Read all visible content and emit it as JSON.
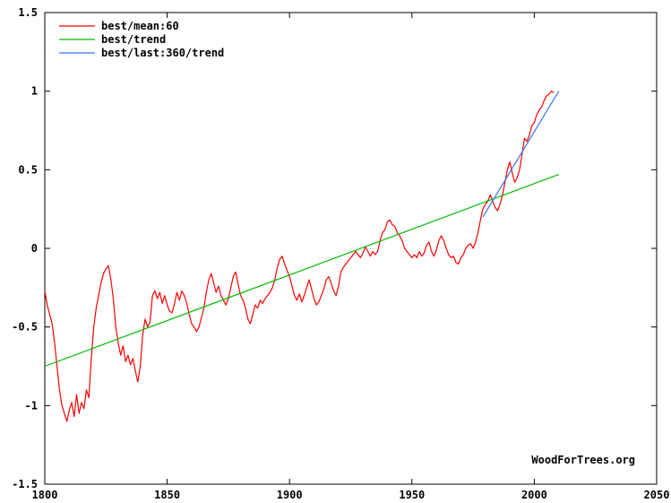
{
  "chart_data": {
    "type": "line",
    "xlim": [
      1800,
      2050
    ],
    "ylim": [
      -1.5,
      1.5
    ],
    "x_ticks": [
      1800,
      1850,
      1900,
      1950,
      2000,
      2050
    ],
    "y_ticks": [
      -1.5,
      -1,
      -0.5,
      0,
      0.5,
      1,
      1.5
    ],
    "x_tick_labels": [
      "1800",
      "1850",
      "1900",
      "1950",
      "2000",
      "2050"
    ],
    "y_tick_labels": [
      "-1.5",
      "-1",
      "-0.5",
      "0",
      "0.5",
      "1",
      "1.5"
    ],
    "grid": false,
    "legend_position": "top-left",
    "credit": "WoodForTrees.org",
    "series": [
      {
        "name": "best/mean:60",
        "color": "#ff0000",
        "points": [
          [
            1800.0,
            -0.27
          ],
          [
            1801.0,
            -0.36
          ],
          [
            1802.0,
            -0.42
          ],
          [
            1803.0,
            -0.48
          ],
          [
            1804.0,
            -0.6
          ],
          [
            1805.0,
            -0.75
          ],
          [
            1806.0,
            -0.9
          ],
          [
            1807.0,
            -1.0
          ],
          [
            1808.0,
            -1.05
          ],
          [
            1809.0,
            -1.1
          ],
          [
            1810.0,
            -1.03
          ],
          [
            1811.0,
            -0.98
          ],
          [
            1812.0,
            -1.07
          ],
          [
            1813.0,
            -0.93
          ],
          [
            1814.0,
            -1.05
          ],
          [
            1815.0,
            -0.98
          ],
          [
            1816.0,
            -1.02
          ],
          [
            1817.0,
            -0.9
          ],
          [
            1818.0,
            -0.95
          ],
          [
            1819.0,
            -0.7
          ],
          [
            1820.0,
            -0.5
          ],
          [
            1821.0,
            -0.38
          ],
          [
            1822.0,
            -0.3
          ],
          [
            1823.0,
            -0.22
          ],
          [
            1824.0,
            -0.16
          ],
          [
            1825.0,
            -0.13
          ],
          [
            1826.0,
            -0.11
          ],
          [
            1827.0,
            -0.2
          ],
          [
            1828.0,
            -0.32
          ],
          [
            1829.0,
            -0.5
          ],
          [
            1830.0,
            -0.6
          ],
          [
            1831.0,
            -0.68
          ],
          [
            1832.0,
            -0.62
          ],
          [
            1833.0,
            -0.72
          ],
          [
            1834.0,
            -0.68
          ],
          [
            1835.0,
            -0.74
          ],
          [
            1836.0,
            -0.7
          ],
          [
            1837.0,
            -0.78
          ],
          [
            1838.0,
            -0.85
          ],
          [
            1839.0,
            -0.75
          ],
          [
            1840.0,
            -0.55
          ],
          [
            1841.0,
            -0.45
          ],
          [
            1842.0,
            -0.5
          ],
          [
            1843.0,
            -0.47
          ],
          [
            1844.0,
            -0.3
          ],
          [
            1845.0,
            -0.27
          ],
          [
            1846.0,
            -0.32
          ],
          [
            1847.0,
            -0.28
          ],
          [
            1848.0,
            -0.35
          ],
          [
            1849.0,
            -0.3
          ],
          [
            1850.0,
            -0.36
          ],
          [
            1851.0,
            -0.4
          ],
          [
            1852.0,
            -0.41
          ],
          [
            1853.0,
            -0.35
          ],
          [
            1854.0,
            -0.28
          ],
          [
            1855.0,
            -0.33
          ],
          [
            1856.0,
            -0.27
          ],
          [
            1857.0,
            -0.3
          ],
          [
            1858.0,
            -0.35
          ],
          [
            1859.0,
            -0.42
          ],
          [
            1860.0,
            -0.48
          ],
          [
            1861.0,
            -0.5
          ],
          [
            1862.0,
            -0.53
          ],
          [
            1863.0,
            -0.5
          ],
          [
            1864.0,
            -0.44
          ],
          [
            1865.0,
            -0.38
          ],
          [
            1866.0,
            -0.28
          ],
          [
            1867.0,
            -0.2
          ],
          [
            1868.0,
            -0.16
          ],
          [
            1869.0,
            -0.22
          ],
          [
            1870.0,
            -0.28
          ],
          [
            1871.0,
            -0.24
          ],
          [
            1872.0,
            -0.3
          ],
          [
            1873.0,
            -0.33
          ],
          [
            1874.0,
            -0.36
          ],
          [
            1875.0,
            -0.32
          ],
          [
            1876.0,
            -0.25
          ],
          [
            1877.0,
            -0.18
          ],
          [
            1878.0,
            -0.15
          ],
          [
            1879.0,
            -0.23
          ],
          [
            1880.0,
            -0.3
          ],
          [
            1881.0,
            -0.33
          ],
          [
            1882.0,
            -0.38
          ],
          [
            1883.0,
            -0.45
          ],
          [
            1884.0,
            -0.48
          ],
          [
            1885.0,
            -0.42
          ],
          [
            1886.0,
            -0.36
          ],
          [
            1887.0,
            -0.38
          ],
          [
            1888.0,
            -0.33
          ],
          [
            1889.0,
            -0.35
          ],
          [
            1890.0,
            -0.32
          ],
          [
            1891.0,
            -0.3
          ],
          [
            1892.0,
            -0.28
          ],
          [
            1893.0,
            -0.25
          ],
          [
            1894.0,
            -0.2
          ],
          [
            1895.0,
            -0.12
          ],
          [
            1896.0,
            -0.07
          ],
          [
            1897.0,
            -0.05
          ],
          [
            1898.0,
            -0.1
          ],
          [
            1899.0,
            -0.14
          ],
          [
            1900.0,
            -0.18
          ],
          [
            1901.0,
            -0.24
          ],
          [
            1902.0,
            -0.3
          ],
          [
            1903.0,
            -0.33
          ],
          [
            1904.0,
            -0.29
          ],
          [
            1905.0,
            -0.34
          ],
          [
            1906.0,
            -0.3
          ],
          [
            1907.0,
            -0.25
          ],
          [
            1908.0,
            -0.2
          ],
          [
            1909.0,
            -0.26
          ],
          [
            1910.0,
            -0.32
          ],
          [
            1911.0,
            -0.36
          ],
          [
            1912.0,
            -0.34
          ],
          [
            1913.0,
            -0.3
          ],
          [
            1914.0,
            -0.26
          ],
          [
            1915.0,
            -0.2
          ],
          [
            1916.0,
            -0.18
          ],
          [
            1917.0,
            -0.22
          ],
          [
            1918.0,
            -0.27
          ],
          [
            1919.0,
            -0.3
          ],
          [
            1920.0,
            -0.24
          ],
          [
            1921.0,
            -0.15
          ],
          [
            1922.0,
            -0.12
          ],
          [
            1923.0,
            -0.1
          ],
          [
            1924.0,
            -0.08
          ],
          [
            1925.0,
            -0.06
          ],
          [
            1926.0,
            -0.04
          ],
          [
            1927.0,
            -0.02
          ],
          [
            1928.0,
            -0.04
          ],
          [
            1929.0,
            -0.06
          ],
          [
            1930.0,
            -0.03
          ],
          [
            1931.0,
            0.01
          ],
          [
            1932.0,
            -0.02
          ],
          [
            1933.0,
            -0.05
          ],
          [
            1934.0,
            -0.02
          ],
          [
            1935.0,
            -0.04
          ],
          [
            1936.0,
            -0.02
          ],
          [
            1937.0,
            0.05
          ],
          [
            1938.0,
            0.1
          ],
          [
            1939.0,
            0.12
          ],
          [
            1940.0,
            0.17
          ],
          [
            1941.0,
            0.18
          ],
          [
            1942.0,
            0.15
          ],
          [
            1943.0,
            0.14
          ],
          [
            1944.0,
            0.1
          ],
          [
            1945.0,
            0.08
          ],
          [
            1946.0,
            0.05
          ],
          [
            1947.0,
            0.0
          ],
          [
            1948.0,
            -0.02
          ],
          [
            1949.0,
            -0.04
          ],
          [
            1950.0,
            -0.06
          ],
          [
            1951.0,
            -0.04
          ],
          [
            1952.0,
            -0.06
          ],
          [
            1953.0,
            -0.02
          ],
          [
            1954.0,
            -0.05
          ],
          [
            1955.0,
            -0.03
          ],
          [
            1956.0,
            0.02
          ],
          [
            1957.0,
            0.04
          ],
          [
            1958.0,
            -0.02
          ],
          [
            1959.0,
            -0.05
          ],
          [
            1960.0,
            -0.01
          ],
          [
            1961.0,
            0.05
          ],
          [
            1962.0,
            0.08
          ],
          [
            1963.0,
            0.05
          ],
          [
            1964.0,
            0.0
          ],
          [
            1965.0,
            -0.04
          ],
          [
            1966.0,
            -0.06
          ],
          [
            1967.0,
            -0.05
          ],
          [
            1968.0,
            -0.09
          ],
          [
            1969.0,
            -0.1
          ],
          [
            1970.0,
            -0.06
          ],
          [
            1971.0,
            -0.04
          ],
          [
            1972.0,
            0.0
          ],
          [
            1973.0,
            0.02
          ],
          [
            1974.0,
            0.03
          ],
          [
            1975.0,
            0.0
          ],
          [
            1976.0,
            0.04
          ],
          [
            1977.0,
            0.1
          ],
          [
            1978.0,
            0.18
          ],
          [
            1979.0,
            0.25
          ],
          [
            1980.0,
            0.28
          ],
          [
            1981.0,
            0.3
          ],
          [
            1982.0,
            0.34
          ],
          [
            1983.0,
            0.3
          ],
          [
            1984.0,
            0.26
          ],
          [
            1985.0,
            0.24
          ],
          [
            1986.0,
            0.28
          ],
          [
            1987.0,
            0.34
          ],
          [
            1988.0,
            0.42
          ],
          [
            1989.0,
            0.5
          ],
          [
            1990.0,
            0.55
          ],
          [
            1991.0,
            0.48
          ],
          [
            1992.0,
            0.42
          ],
          [
            1993.0,
            0.45
          ],
          [
            1994.0,
            0.5
          ],
          [
            1995.0,
            0.6
          ],
          [
            1996.0,
            0.7
          ],
          [
            1997.0,
            0.68
          ],
          [
            1998.0,
            0.72
          ],
          [
            1999.0,
            0.78
          ],
          [
            2000.0,
            0.8
          ],
          [
            2001.0,
            0.85
          ],
          [
            2002.0,
            0.88
          ],
          [
            2003.0,
            0.9
          ],
          [
            2004.0,
            0.94
          ],
          [
            2005.0,
            0.97
          ],
          [
            2006.0,
            0.98
          ],
          [
            2007.0,
            1.0
          ],
          [
            2008.0,
            0.99
          ]
        ]
      },
      {
        "name": "best/trend",
        "color": "#00bb00",
        "points": [
          [
            1800,
            -0.75
          ],
          [
            2010,
            0.47
          ]
        ]
      },
      {
        "name": "best/last:360/trend",
        "color": "#3377ee",
        "points": [
          [
            1979,
            0.2
          ],
          [
            2010,
            1.0
          ]
        ]
      }
    ]
  }
}
